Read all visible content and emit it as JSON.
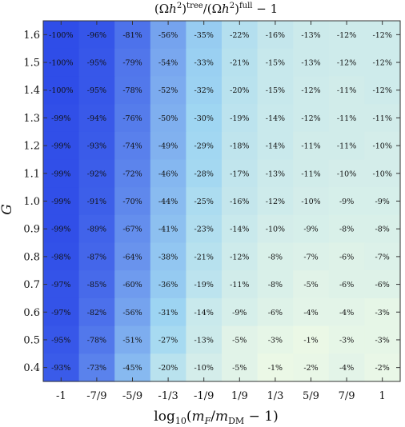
{
  "chart_data": {
    "type": "heatmap",
    "title": "(Ωh²)^tree/(Ωh²)^full − 1",
    "xlabel": "log10(mF/mDM − 1)",
    "ylabel": "G",
    "x_tick_labels": [
      "-1",
      "-7/9",
      "-5/9",
      "-1/3",
      "-1/9",
      "1/9",
      "1/3",
      "5/9",
      "7/9",
      "1"
    ],
    "y_tick_labels": [
      "1.6",
      "1.5",
      "1.4",
      "1.3",
      "1.2",
      "1.1",
      "1.0",
      "0.9",
      "0.8",
      "0.7",
      "0.6",
      "0.5",
      "0.4"
    ],
    "unit": "%",
    "values": [
      [
        -100,
        -96,
        -81,
        -56,
        -35,
        -22,
        -16,
        -13,
        -12,
        -12
      ],
      [
        -100,
        -95,
        -79,
        -54,
        -33,
        -21,
        -15,
        -13,
        -12,
        -12
      ],
      [
        -100,
        -95,
        -78,
        -52,
        -32,
        -20,
        -15,
        -12,
        -11,
        -12
      ],
      [
        -99,
        -94,
        -76,
        -50,
        -30,
        -19,
        -14,
        -12,
        -11,
        -11
      ],
      [
        -99,
        -93,
        -74,
        -49,
        -29,
        -18,
        -14,
        -11,
        -11,
        -10
      ],
      [
        -99,
        -92,
        -72,
        -46,
        -28,
        -17,
        -13,
        -11,
        -10,
        -10
      ],
      [
        -99,
        -91,
        -70,
        -44,
        -25,
        -16,
        -12,
        -10,
        -9,
        -9
      ],
      [
        -99,
        -89,
        -67,
        -41,
        -23,
        -14,
        -10,
        -9,
        -8,
        -8
      ],
      [
        -98,
        -87,
        -64,
        -38,
        -21,
        -12,
        -8,
        -7,
        -6,
        -7
      ],
      [
        -97,
        -85,
        -60,
        -36,
        -19,
        -11,
        -8,
        -5,
        -6,
        -6
      ],
      [
        -97,
        -82,
        -56,
        -31,
        -14,
        -9,
        -6,
        -4,
        -4,
        -3
      ],
      [
        -95,
        -78,
        -51,
        -27,
        -13,
        -5,
        -3,
        -1,
        -3,
        -3
      ],
      [
        -93,
        -73,
        -45,
        -20,
        -10,
        -5,
        -1,
        -2,
        -4,
        -2
      ]
    ],
    "colors": {
      "low": "#2f4de8",
      "mid": "#9fd6f2",
      "high": "#eef9e6"
    }
  }
}
